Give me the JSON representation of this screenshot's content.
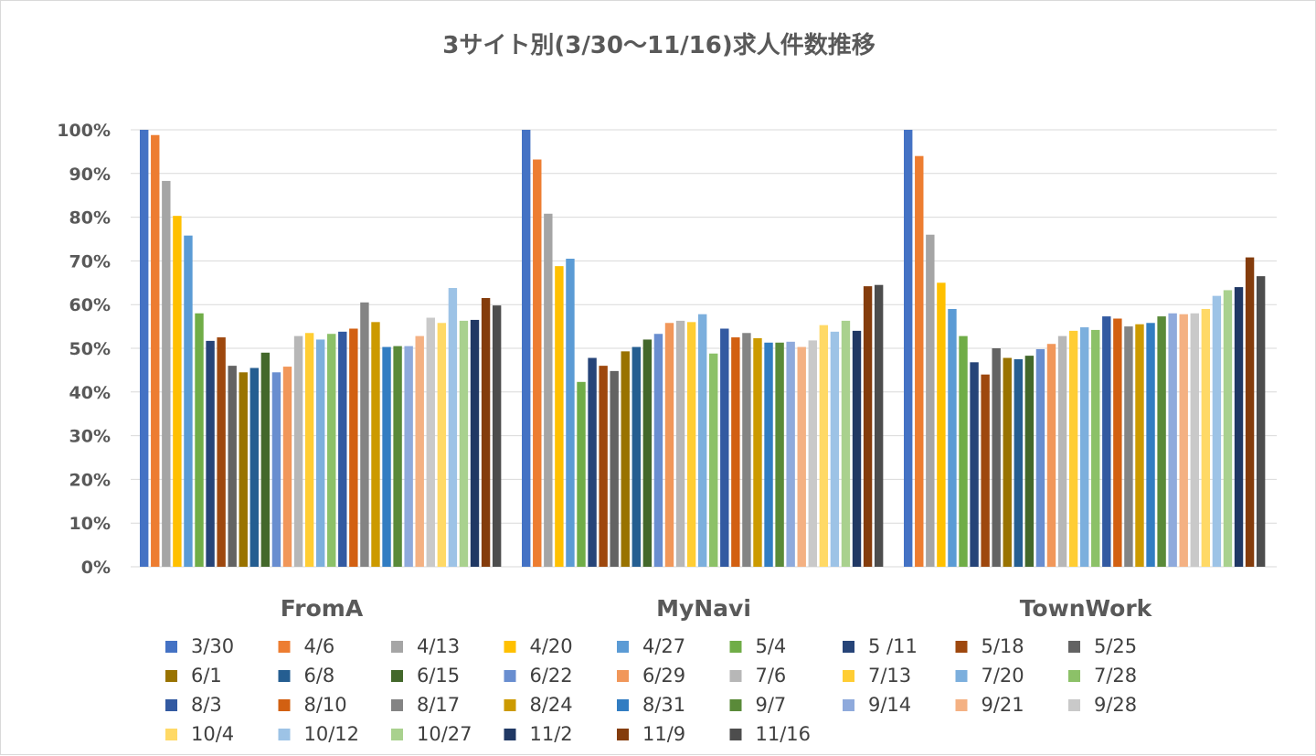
{
  "chart_data": {
    "type": "bar",
    "title": "3サイト別(3/30～11/16)求人件数推移",
    "xlabel": "",
    "ylabel": "",
    "ylim": [
      0,
      100
    ],
    "yticks": [
      "0%",
      "10%",
      "20%",
      "30%",
      "40%",
      "50%",
      "60%",
      "70%",
      "80%",
      "90%",
      "100%"
    ],
    "categories": [
      "FromA",
      "MyNavi",
      "TownWork"
    ],
    "grid": true,
    "legend_position": "bottom",
    "series": [
      {
        "name": "3/30",
        "color": "#4472C4",
        "values": [
          100,
          100,
          100
        ]
      },
      {
        "name": "4/6",
        "color": "#ED7D31",
        "values": [
          98.8,
          93.2,
          94.0
        ]
      },
      {
        "name": "4/13",
        "color": "#A5A5A5",
        "values": [
          88.3,
          80.8,
          76.0
        ]
      },
      {
        "name": "4/20",
        "color": "#FFC000",
        "values": [
          80.3,
          68.8,
          65.0
        ]
      },
      {
        "name": "4/27",
        "color": "#5B9BD5",
        "values": [
          75.8,
          70.5,
          59.0
        ]
      },
      {
        "name": "5/4",
        "color": "#70AD47",
        "values": [
          58.0,
          42.3,
          52.8
        ]
      },
      {
        "name": "5 /11",
        "color": "#264478",
        "values": [
          51.7,
          47.8,
          46.8
        ]
      },
      {
        "name": "5/18",
        "color": "#9E480E",
        "values": [
          52.5,
          46.0,
          44.0
        ]
      },
      {
        "name": "5/25",
        "color": "#636363",
        "values": [
          46.0,
          44.8,
          50.0
        ]
      },
      {
        "name": "6/1",
        "color": "#997300",
        "values": [
          44.5,
          49.3,
          47.8
        ]
      },
      {
        "name": "6/8",
        "color": "#255E91",
        "values": [
          45.5,
          50.3,
          47.5
        ]
      },
      {
        "name": "6/15",
        "color": "#43682B",
        "values": [
          49.0,
          52.0,
          48.3
        ]
      },
      {
        "name": "6/22",
        "color": "#698ED0",
        "values": [
          44.5,
          53.3,
          49.8
        ]
      },
      {
        "name": "6/29",
        "color": "#F1975A",
        "values": [
          45.8,
          55.8,
          51.0
        ]
      },
      {
        "name": "7/6",
        "color": "#B7B7B7",
        "values": [
          52.8,
          56.3,
          52.8
        ]
      },
      {
        "name": "7/13",
        "color": "#FFCD33",
        "values": [
          53.5,
          56.0,
          54.0
        ]
      },
      {
        "name": "7/20",
        "color": "#7CAFDD",
        "values": [
          52.0,
          57.8,
          54.8
        ]
      },
      {
        "name": "7/28",
        "color": "#8CC168",
        "values": [
          53.3,
          48.8,
          54.2
        ]
      },
      {
        "name": "8/3",
        "color": "#335AA1",
        "values": [
          53.8,
          54.5,
          57.3
        ]
      },
      {
        "name": "8/10",
        "color": "#D26012",
        "values": [
          54.5,
          52.5,
          56.8
        ]
      },
      {
        "name": "8/17",
        "color": "#848484",
        "values": [
          60.5,
          53.5,
          55.0
        ]
      },
      {
        "name": "8/24",
        "color": "#CC9A00",
        "values": [
          56.0,
          52.3,
          55.5
        ]
      },
      {
        "name": "8/31",
        "color": "#327DC2",
        "values": [
          50.3,
          51.3,
          55.8
        ]
      },
      {
        "name": "9/7",
        "color": "#5A8A39",
        "values": [
          50.5,
          51.3,
          57.3
        ]
      },
      {
        "name": "9/14",
        "color": "#8FAADC",
        "values": [
          50.5,
          51.5,
          58.0
        ]
      },
      {
        "name": "9/21",
        "color": "#F4B183",
        "values": [
          52.8,
          50.3,
          57.8
        ]
      },
      {
        "name": "9/28",
        "color": "#C9C9C9",
        "values": [
          57.0,
          51.8,
          58.0
        ]
      },
      {
        "name": "10/4",
        "color": "#FFD966",
        "values": [
          55.8,
          55.3,
          59.0
        ]
      },
      {
        "name": "10/12",
        "color": "#9DC3E6",
        "values": [
          63.8,
          53.8,
          62.0
        ]
      },
      {
        "name": "10/27",
        "color": "#A9D18E",
        "values": [
          56.3,
          56.3,
          63.3
        ]
      },
      {
        "name": "11/2",
        "color": "#203864",
        "values": [
          56.5,
          54.0,
          64.0
        ]
      },
      {
        "name": "11/9",
        "color": "#843C0C",
        "values": [
          61.5,
          64.2,
          70.8
        ]
      },
      {
        "name": "11/16",
        "color": "#4D4D4D",
        "values": [
          59.8,
          64.5,
          66.5
        ]
      }
    ]
  }
}
